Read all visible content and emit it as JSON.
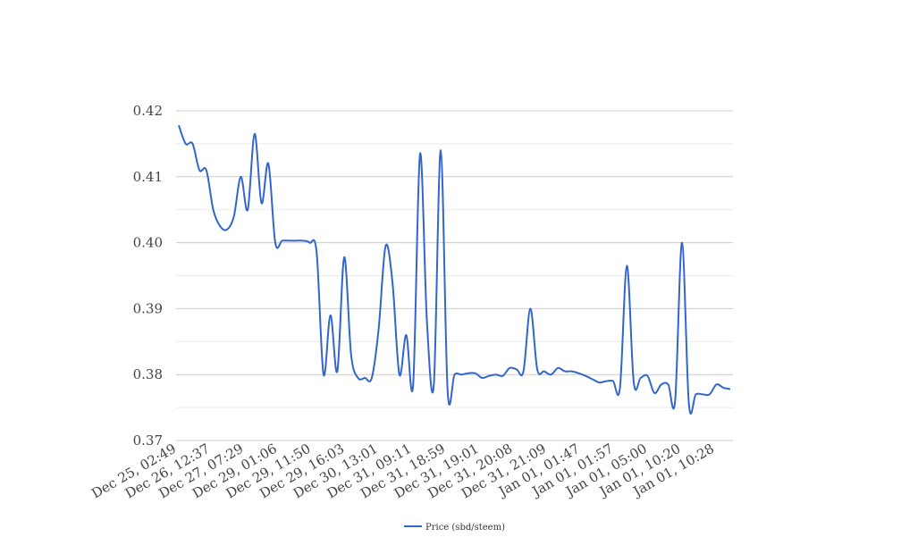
{
  "chart_data": {
    "type": "line",
    "title": "",
    "xlabel": "",
    "ylabel": "",
    "ylim": [
      0.37,
      0.42
    ],
    "y_ticks": [
      "0.42",
      "0.41",
      "0.40",
      "0.39",
      "0.38",
      "0.37"
    ],
    "y_tick_values": [
      0.42,
      0.41,
      0.4,
      0.39,
      0.38,
      0.37
    ],
    "x_tick_labels": [
      "Dec 25, 02:49",
      "Dec 26, 12:37",
      "Dec 27, 07:29",
      "Dec 29, 01:06",
      "Dec 29, 11:50",
      "Dec 29, 16:03",
      "Dec 30, 13:01",
      "Dec 31, 09:11",
      "Dec 31, 18:59",
      "Dec 31, 19:01",
      "Dec 31, 20:08",
      "Dec 31, 21:09",
      "Jan 01, 01:47",
      "Jan 01, 01:57",
      "Jan 01, 05:00",
      "Jan 01, 10:20",
      "Jan 01, 10:28"
    ],
    "grid": true,
    "legend_position": "bottom",
    "series": [
      {
        "name": "Price (sbd/steem)",
        "color": "#3366cc",
        "values": [
          0.4178,
          0.415,
          0.415,
          0.411,
          0.411,
          0.405,
          0.4025,
          0.402,
          0.404,
          0.41,
          0.405,
          0.4165,
          0.406,
          0.412,
          0.4,
          0.4003,
          0.4003,
          0.4003,
          0.4003,
          0.4,
          0.3985,
          0.38,
          0.389,
          0.3805,
          0.3978,
          0.383,
          0.3795,
          0.3795,
          0.3795,
          0.387,
          0.3995,
          0.394,
          0.38,
          0.386,
          0.3785,
          0.4135,
          0.388,
          0.3785,
          0.414,
          0.3775,
          0.38,
          0.38,
          0.3802,
          0.3802,
          0.3795,
          0.3798,
          0.38,
          0.3798,
          0.381,
          0.3808,
          0.3805,
          0.39,
          0.3808,
          0.3805,
          0.38,
          0.381,
          0.3805,
          0.3805,
          0.3802,
          0.3798,
          0.3793,
          0.3788,
          0.379,
          0.379,
          0.378,
          0.3965,
          0.3788,
          0.3795,
          0.3798,
          0.3772,
          0.3785,
          0.3785,
          0.376,
          0.4,
          0.3755,
          0.377,
          0.377,
          0.377,
          0.3785,
          0.378,
          0.3778
        ]
      }
    ]
  }
}
